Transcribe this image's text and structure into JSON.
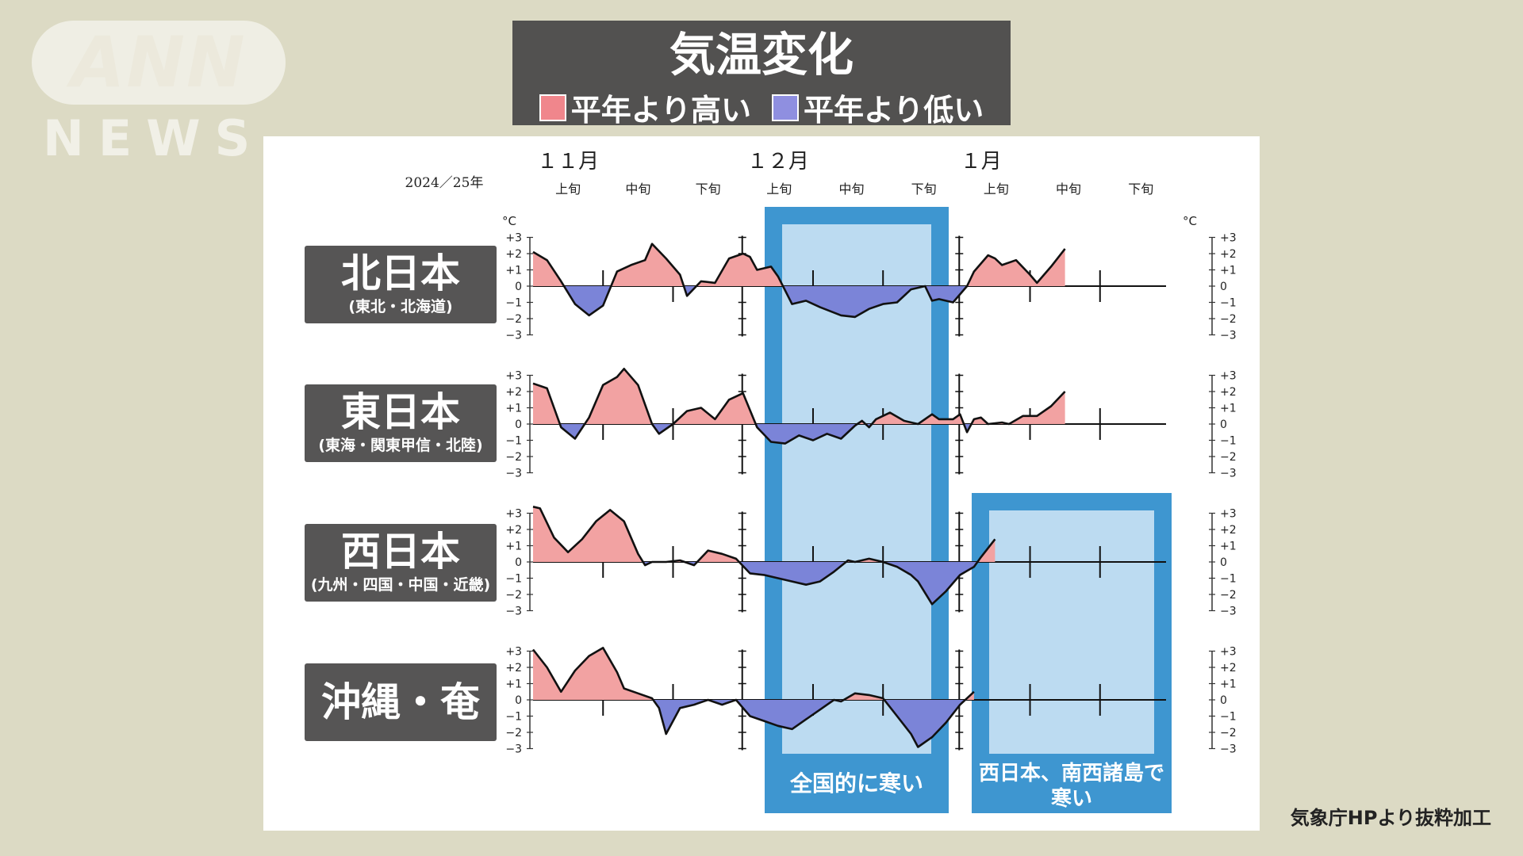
{
  "logo": {
    "top": "ANN",
    "bottom": "NEWS"
  },
  "header": {
    "title": "気温変化",
    "legend": [
      {
        "label": "平年より高い",
        "color": "#f0868c"
      },
      {
        "label": "平年より低い",
        "color": "#8f8fe0"
      }
    ]
  },
  "source": "気象庁HPより抜粋加工",
  "chart_data": {
    "type": "area",
    "year_label": "2024／25年",
    "months": [
      {
        "label": "１１月",
        "dekads": [
          "上旬",
          "中旬",
          "下旬"
        ]
      },
      {
        "label": "１２月",
        "dekads": [
          "上旬",
          "中旬",
          "下旬"
        ]
      },
      {
        "label": "１月",
        "dekads": [
          "上旬",
          "中旬",
          "下旬"
        ]
      }
    ],
    "unit": "°C",
    "ylim": [
      -3,
      3
    ],
    "yticks": [
      "+3",
      "+2",
      "+1",
      "0",
      "−1",
      "−2",
      "−3"
    ],
    "colors": {
      "above": "#f2a2a2",
      "below": "#7b84d8"
    },
    "x_note": "day index from Nov 1 (0–91); data ends near day 78",
    "series": [
      {
        "name": "北日本",
        "sub": "(東北・北海道)",
        "points": [
          [
            0,
            2.1
          ],
          [
            2,
            1.6
          ],
          [
            4,
            0.3
          ],
          [
            6,
            -1.1
          ],
          [
            8,
            -1.8
          ],
          [
            10,
            -1.2
          ],
          [
            12,
            0.9
          ],
          [
            14,
            1.3
          ],
          [
            16,
            1.6
          ],
          [
            17,
            2.6
          ],
          [
            19,
            1.7
          ],
          [
            21,
            0.7
          ],
          [
            22,
            -0.6
          ],
          [
            24,
            0.3
          ],
          [
            26,
            0.2
          ],
          [
            28,
            1.7
          ],
          [
            30,
            2.0
          ],
          [
            31,
            1.8
          ],
          [
            32,
            1.0
          ],
          [
            34,
            1.2
          ],
          [
            35,
            0.6
          ],
          [
            37,
            -1.1
          ],
          [
            39,
            -0.9
          ],
          [
            41,
            -1.3
          ],
          [
            44,
            -1.8
          ],
          [
            46,
            -1.9
          ],
          [
            48,
            -1.4
          ],
          [
            50,
            -1.1
          ],
          [
            52,
            -1.0
          ],
          [
            54,
            -0.2
          ],
          [
            56,
            0.0
          ],
          [
            57,
            -0.9
          ],
          [
            58,
            -0.8
          ],
          [
            60,
            -1.0
          ],
          [
            62,
            0.0
          ],
          [
            63,
            0.9
          ],
          [
            65,
            1.9
          ],
          [
            66,
            1.7
          ],
          [
            67,
            1.3
          ],
          [
            69,
            1.6
          ],
          [
            71,
            0.7
          ],
          [
            72,
            0.2
          ],
          [
            74,
            1.2
          ],
          [
            76,
            2.3
          ]
        ]
      },
      {
        "name": "東日本",
        "sub": "(東海・関東甲信・北陸)",
        "points": [
          [
            0,
            2.5
          ],
          [
            2,
            2.2
          ],
          [
            4,
            -0.2
          ],
          [
            6,
            -0.9
          ],
          [
            8,
            0.4
          ],
          [
            10,
            2.4
          ],
          [
            12,
            2.9
          ],
          [
            13,
            3.4
          ],
          [
            15,
            2.4
          ],
          [
            17,
            0.0
          ],
          [
            18,
            -0.6
          ],
          [
            20,
            0.0
          ],
          [
            22,
            0.8
          ],
          [
            24,
            1.0
          ],
          [
            26,
            0.3
          ],
          [
            28,
            1.5
          ],
          [
            30,
            1.9
          ],
          [
            32,
            -0.2
          ],
          [
            34,
            -1.1
          ],
          [
            36,
            -1.2
          ],
          [
            38,
            -0.7
          ],
          [
            40,
            -1.0
          ],
          [
            42,
            -0.6
          ],
          [
            44,
            -0.9
          ],
          [
            46,
            -0.1
          ],
          [
            47,
            0.2
          ],
          [
            48,
            -0.2
          ],
          [
            49,
            0.3
          ],
          [
            51,
            0.7
          ],
          [
            53,
            0.2
          ],
          [
            55,
            0.0
          ],
          [
            57,
            0.6
          ],
          [
            58,
            0.3
          ],
          [
            60,
            0.3
          ],
          [
            61,
            0.6
          ],
          [
            62,
            -0.5
          ],
          [
            63,
            0.3
          ],
          [
            64,
            0.4
          ],
          [
            65,
            0.0
          ],
          [
            67,
            0.1
          ],
          [
            68,
            0.0
          ],
          [
            70,
            0.5
          ],
          [
            72,
            0.5
          ],
          [
            74,
            1.1
          ],
          [
            76,
            2.0
          ]
        ]
      },
      {
        "name": "西日本",
        "sub": "(九州・四国・中国・近畿)",
        "points": [
          [
            0,
            3.4
          ],
          [
            1,
            3.3
          ],
          [
            3,
            1.5
          ],
          [
            5,
            0.6
          ],
          [
            7,
            1.4
          ],
          [
            9,
            2.5
          ],
          [
            11,
            3.2
          ],
          [
            13,
            2.5
          ],
          [
            15,
            0.5
          ],
          [
            16,
            -0.2
          ],
          [
            17,
            0.0
          ],
          [
            19,
            0.0
          ],
          [
            21,
            0.1
          ],
          [
            23,
            -0.2
          ],
          [
            25,
            0.7
          ],
          [
            27,
            0.5
          ],
          [
            29,
            0.2
          ],
          [
            31,
            -0.7
          ],
          [
            33,
            -0.8
          ],
          [
            35,
            -1.0
          ],
          [
            37,
            -1.2
          ],
          [
            39,
            -1.4
          ],
          [
            41,
            -1.2
          ],
          [
            43,
            -0.6
          ],
          [
            45,
            0.1
          ],
          [
            46,
            0.0
          ],
          [
            48,
            0.2
          ],
          [
            50,
            0.0
          ],
          [
            52,
            -0.3
          ],
          [
            54,
            -0.8
          ],
          [
            55,
            -1.2
          ],
          [
            57,
            -2.6
          ],
          [
            59,
            -1.8
          ],
          [
            61,
            -0.8
          ],
          [
            63,
            -0.3
          ],
          [
            64,
            0.3
          ],
          [
            66,
            1.4
          ]
        ]
      },
      {
        "name": "沖縄・奄美",
        "sub": "",
        "points": [
          [
            0,
            3.1
          ],
          [
            2,
            2.0
          ],
          [
            4,
            0.5
          ],
          [
            6,
            1.8
          ],
          [
            8,
            2.7
          ],
          [
            10,
            3.2
          ],
          [
            12,
            1.7
          ],
          [
            13,
            0.7
          ],
          [
            15,
            0.4
          ],
          [
            17,
            0.1
          ],
          [
            18,
            -0.5
          ],
          [
            19,
            -2.1
          ],
          [
            21,
            -0.5
          ],
          [
            23,
            -0.3
          ],
          [
            25,
            0.0
          ],
          [
            27,
            -0.3
          ],
          [
            29,
            0.0
          ],
          [
            31,
            -1.0
          ],
          [
            33,
            -1.3
          ],
          [
            35,
            -1.6
          ],
          [
            37,
            -1.8
          ],
          [
            39,
            -1.2
          ],
          [
            41,
            -0.6
          ],
          [
            43,
            0.0
          ],
          [
            44,
            -0.1
          ],
          [
            46,
            0.4
          ],
          [
            48,
            0.3
          ],
          [
            50,
            0.1
          ],
          [
            52,
            -1.0
          ],
          [
            54,
            -2.1
          ],
          [
            55,
            -2.9
          ],
          [
            57,
            -2.3
          ],
          [
            59,
            -1.4
          ],
          [
            61,
            -0.3
          ],
          [
            63,
            0.5
          ]
        ]
      }
    ],
    "highlights": [
      {
        "label": "全国的に寒い"
      },
      {
        "label": "西日本、南西諸島で寒い"
      }
    ]
  }
}
